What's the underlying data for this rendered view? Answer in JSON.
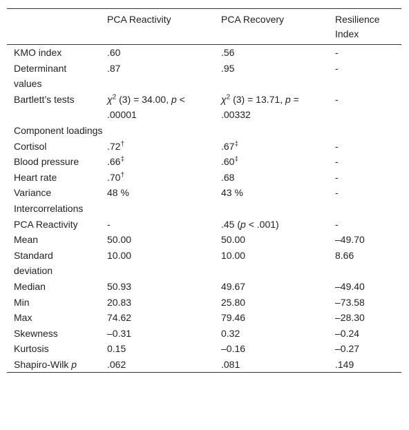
{
  "table": {
    "header": [
      "PCA Reactivity",
      "PCA Recovery",
      "Resilience Index"
    ],
    "rows": [
      [
        "KMO index",
        ".60",
        ".56",
        "-"
      ],
      [
        "Determinant values",
        ".87",
        ".95",
        "-"
      ],
      [
        "Bartlett’s tests",
        [
          {
            "text": "χ",
            "style": "italic"
          },
          {
            "text": "2",
            "style": "sup"
          },
          " (3) = 34.00, ",
          {
            "text": "p",
            "style": "italic"
          },
          " < .00001"
        ],
        [
          {
            "text": "χ",
            "style": "italic"
          },
          {
            "text": "2",
            "style": "sup"
          },
          " (3) = 13.71, ",
          {
            "text": "p",
            "style": "italic"
          },
          " = .00332"
        ],
        "-"
      ],
      [
        "Component loadings"
      ],
      [
        "Cortisol",
        [
          ".72",
          {
            "text": "†",
            "style": "sup"
          }
        ],
        [
          ".67",
          {
            "text": "‡",
            "style": "sup"
          }
        ],
        "-"
      ],
      [
        "Blood pressure",
        [
          ".66",
          {
            "text": "‡",
            "style": "sup"
          }
        ],
        [
          ".60",
          {
            "text": "‡",
            "style": "sup"
          }
        ],
        "-"
      ],
      [
        "Heart rate",
        [
          ".70",
          {
            "text": "†",
            "style": "sup"
          }
        ],
        ".68",
        "-"
      ],
      [
        "Variance",
        "48 %",
        "43 %",
        "-"
      ],
      [
        "Intercorrelations"
      ],
      [
        "PCA Reactivity",
        "-",
        [
          ".45 (",
          {
            "text": "p",
            "style": "italic"
          },
          " < .001)"
        ],
        "-"
      ],
      [
        "Mean",
        "50.00",
        "50.00",
        "–49.70"
      ],
      [
        "Standard deviation",
        "10.00",
        "10.00",
        "8.66"
      ],
      [
        "Median",
        "50.93",
        "49.67",
        "–49.40"
      ],
      [
        "Min",
        "20.83",
        "25.80",
        "–73.58"
      ],
      [
        "Max",
        "74.62",
        "79.46",
        "–28.30"
      ],
      [
        "Skewness",
        "–0.31",
        "0.32",
        "–0.24"
      ],
      [
        "Kurtosis",
        "0.15",
        "–0.16",
        "–0.27"
      ],
      [
        [
          "Shapiro-Wilk ",
          {
            "text": "p",
            "style": "italic"
          }
        ],
        ".062",
        ".081",
        ".149"
      ]
    ]
  }
}
